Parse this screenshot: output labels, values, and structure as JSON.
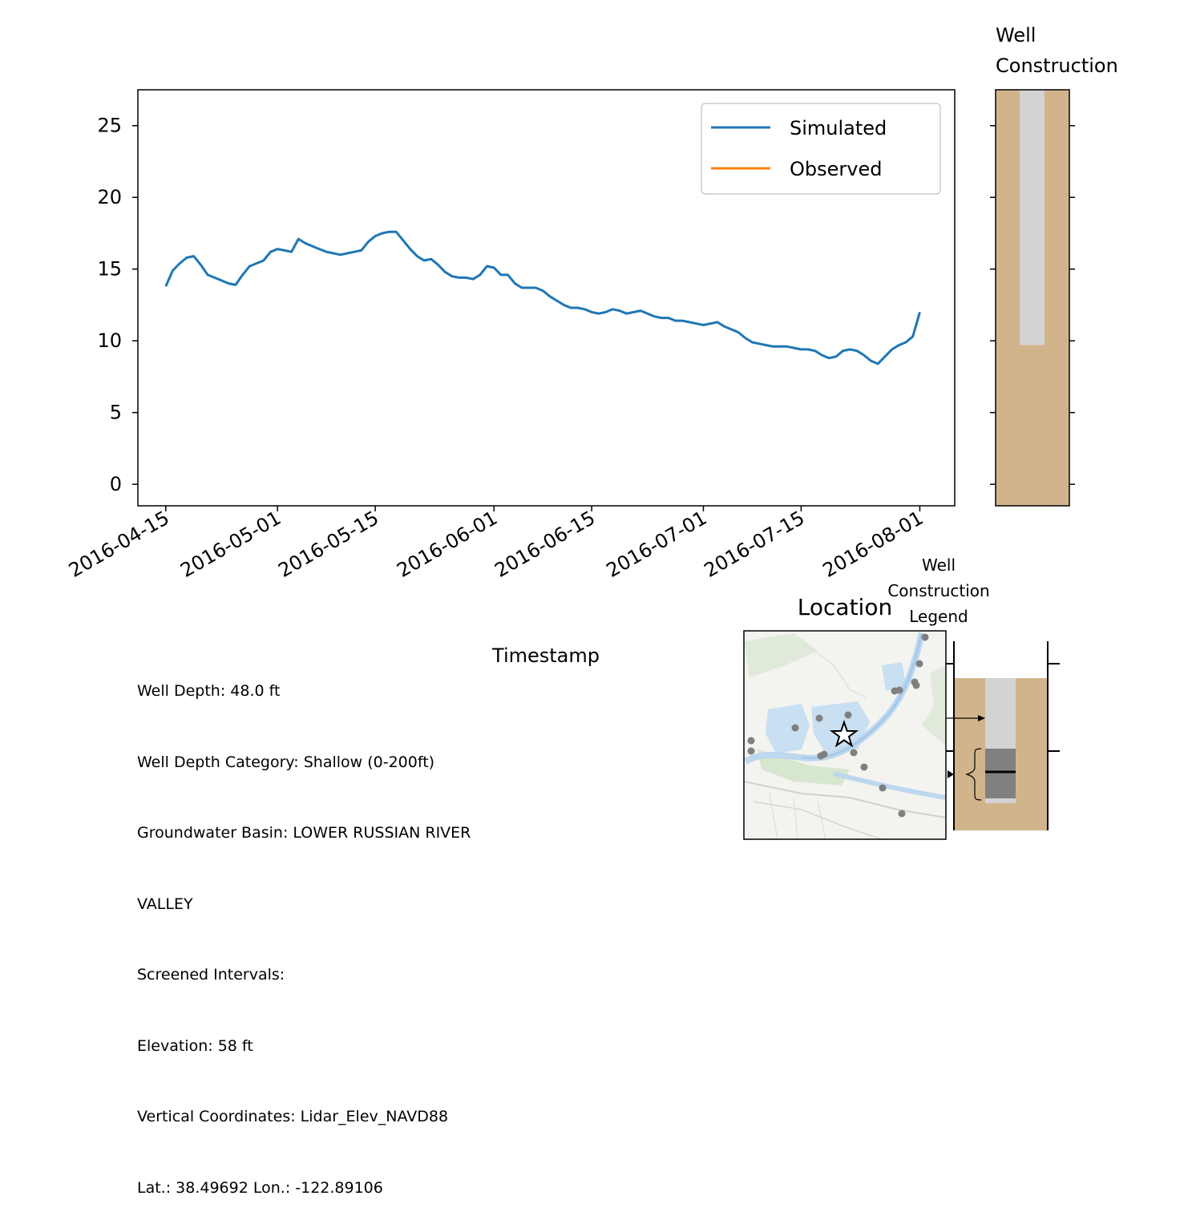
{
  "chart_data": [
    {
      "type": "line",
      "xlabel": "Timestamp",
      "ylabel": "",
      "ylim": [
        -1.5,
        27.5
      ],
      "yticks": [
        0,
        5,
        10,
        15,
        20,
        25
      ],
      "xlim": [
        "2016-04-11",
        "2016-08-06"
      ],
      "xticks": [
        "2016-04-15",
        "2016-05-01",
        "2016-05-15",
        "2016-06-01",
        "2016-06-15",
        "2016-07-01",
        "2016-07-15",
        "2016-08-01"
      ],
      "legend": {
        "placement": "top-right",
        "entries": [
          "Simulated",
          "Observed"
        ]
      },
      "colors": {
        "Simulated": "#1f77b4",
        "Observed": "#ff7f0e"
      },
      "grid": false,
      "series": [
        {
          "name": "Simulated",
          "x": [
            "2016-04-15",
            "2016-04-16",
            "2016-04-17",
            "2016-04-18",
            "2016-04-19",
            "2016-04-20",
            "2016-04-21",
            "2016-04-22",
            "2016-04-23",
            "2016-04-24",
            "2016-04-25",
            "2016-04-26",
            "2016-04-27",
            "2016-04-28",
            "2016-04-29",
            "2016-04-30",
            "2016-05-01",
            "2016-05-02",
            "2016-05-03",
            "2016-05-04",
            "2016-05-05",
            "2016-05-06",
            "2016-05-07",
            "2016-05-08",
            "2016-05-09",
            "2016-05-10",
            "2016-05-11",
            "2016-05-12",
            "2016-05-13",
            "2016-05-14",
            "2016-05-15",
            "2016-05-16",
            "2016-05-17",
            "2016-05-18",
            "2016-05-19",
            "2016-05-20",
            "2016-05-21",
            "2016-05-22",
            "2016-05-23",
            "2016-05-24",
            "2016-05-25",
            "2016-05-26",
            "2016-05-27",
            "2016-05-28",
            "2016-05-29",
            "2016-05-30",
            "2016-05-31",
            "2016-06-01",
            "2016-06-02",
            "2016-06-03",
            "2016-06-04",
            "2016-06-05",
            "2016-06-06",
            "2016-06-07",
            "2016-06-08",
            "2016-06-09",
            "2016-06-10",
            "2016-06-11",
            "2016-06-12",
            "2016-06-13",
            "2016-06-14",
            "2016-06-15",
            "2016-06-16",
            "2016-06-17",
            "2016-06-18",
            "2016-06-19",
            "2016-06-20",
            "2016-06-21",
            "2016-06-22",
            "2016-06-23",
            "2016-06-24",
            "2016-06-25",
            "2016-06-26",
            "2016-06-27",
            "2016-06-28",
            "2016-06-29",
            "2016-06-30",
            "2016-07-01",
            "2016-07-02",
            "2016-07-03",
            "2016-07-04",
            "2016-07-05",
            "2016-07-06",
            "2016-07-07",
            "2016-07-08",
            "2016-07-09",
            "2016-07-10",
            "2016-07-11",
            "2016-07-12",
            "2016-07-13",
            "2016-07-14",
            "2016-07-15",
            "2016-07-16",
            "2016-07-17",
            "2016-07-18",
            "2016-07-19",
            "2016-07-20",
            "2016-07-21",
            "2016-07-22",
            "2016-07-23",
            "2016-07-24",
            "2016-07-25",
            "2016-07-26",
            "2016-07-27",
            "2016-07-28",
            "2016-07-29",
            "2016-07-30",
            "2016-07-31",
            "2016-08-01"
          ],
          "values": [
            13.8,
            14.9,
            15.4,
            15.8,
            15.9,
            15.3,
            14.6,
            14.4,
            14.2,
            14.0,
            13.9,
            14.6,
            15.2,
            15.4,
            15.6,
            16.2,
            16.4,
            16.3,
            16.2,
            17.1,
            16.8,
            16.6,
            16.4,
            16.2,
            16.1,
            16.0,
            16.1,
            16.2,
            16.3,
            16.9,
            17.3,
            17.5,
            17.6,
            17.6,
            17.0,
            16.4,
            15.9,
            15.6,
            15.7,
            15.3,
            14.8,
            14.5,
            14.4,
            14.4,
            14.3,
            14.6,
            15.2,
            15.1,
            14.6,
            14.6,
            14.0,
            13.7,
            13.7,
            13.7,
            13.5,
            13.1,
            12.8,
            12.5,
            12.3,
            12.3,
            12.2,
            12.0,
            11.9,
            12.0,
            12.2,
            12.1,
            11.9,
            12.0,
            12.1,
            11.9,
            11.7,
            11.6,
            11.6,
            11.4,
            11.4,
            11.3,
            11.2,
            11.1,
            11.2,
            11.3,
            11.0,
            10.8,
            10.6,
            10.2,
            9.9,
            9.8,
            9.7,
            9.6,
            9.6,
            9.6,
            9.5,
            9.4,
            9.4,
            9.3,
            9.0,
            8.8,
            8.9,
            9.3,
            9.4,
            9.3,
            9.0,
            8.6,
            8.4,
            8.9,
            9.4,
            9.7,
            9.9,
            10.3,
            12.0
          ]
        },
        {
          "name": "Observed",
          "x": [],
          "values": []
        }
      ]
    },
    {
      "type": "diagram",
      "title": "Well Construction",
      "ylim": [
        -1.5,
        27.5
      ],
      "yticks": [
        0,
        5,
        10,
        15,
        20,
        25
      ],
      "casing_bottom": 9.7,
      "colors": {
        "formation": "#d2b48c",
        "casing": "#d3d3d3"
      }
    }
  ],
  "info": {
    "lines": [
      "Well Depth: 48.0 ft",
      "Well Depth Category: Shallow (0-200ft)",
      "Groundwater Basin: LOWER RUSSIAN RIVER",
      "VALLEY",
      "Screened Intervals:",
      "Elevation: 58 ft",
      "Vertical Coordinates: Lidar_Elev_NAVD88",
      "Lat.: 38.49692 Lon.: -122.89106"
    ]
  },
  "location": {
    "title": "Location",
    "well_marker": "star-icon",
    "nearby_wells": "dot-markers"
  },
  "legend_panel": {
    "title": "Well Construction Legend",
    "title_lines": [
      "Well",
      "Construction",
      "Legend"
    ]
  }
}
